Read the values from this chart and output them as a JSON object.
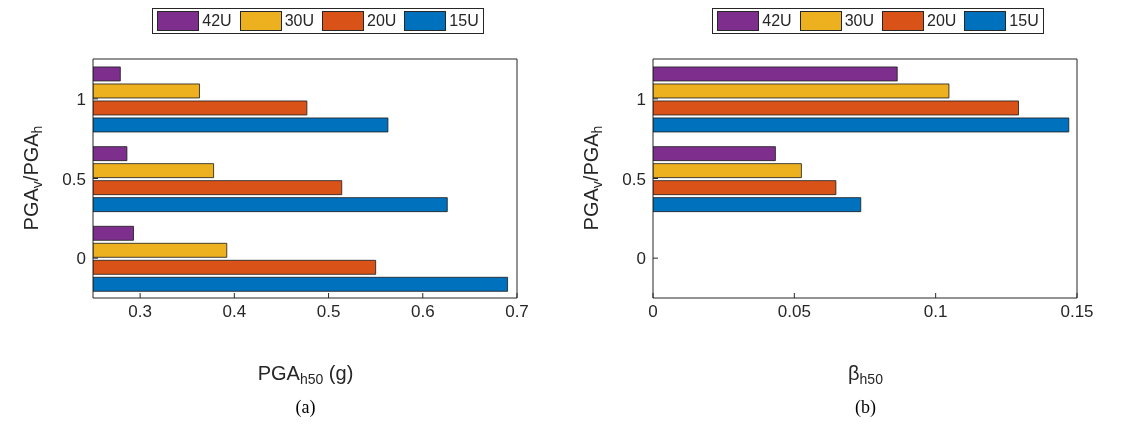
{
  "chart_data": [
    {
      "type": "bar",
      "orientation": "horizontal",
      "categories": [
        "1",
        "0.5",
        "0"
      ],
      "xlabel": "PGA$_{h50}$ (g)",
      "ylabel": "PGA$_{v}$/PGA$_{h}$",
      "xlim": [
        0.25,
        0.7
      ],
      "xticks": [
        0.3,
        0.4,
        0.5,
        0.6,
        0.7
      ],
      "legend": "top",
      "grid": false,
      "annotations": [
        "(a)"
      ],
      "series": [
        {
          "name": "42U",
          "color": "#7e2f8e",
          "values": [
            0.279,
            0.286,
            0.293
          ]
        },
        {
          "name": "30U",
          "color": "#edb120",
          "values": [
            0.363,
            0.378,
            0.392
          ]
        },
        {
          "name": "20U",
          "color": "#d95319",
          "values": [
            0.477,
            0.514,
            0.55
          ]
        },
        {
          "name": "15U",
          "color": "#0072bd",
          "values": [
            0.563,
            0.626,
            0.69
          ]
        }
      ]
    },
    {
      "type": "bar",
      "orientation": "horizontal",
      "categories": [
        "1",
        "0.5",
        "0"
      ],
      "xlabel": "β$_{h50}$",
      "ylabel": "PGA$_{v}$/PGA$_{h}$",
      "xlim": [
        0,
        0.15
      ],
      "xticks": [
        0,
        0.05,
        0.1,
        0.15
      ],
      "legend": "top",
      "grid": false,
      "annotations": [
        "(b)"
      ],
      "series": [
        {
          "name": "42U",
          "color": "#7e2f8e",
          "values": [
            0.0864,
            0.0433,
            0
          ]
        },
        {
          "name": "30U",
          "color": "#edb120",
          "values": [
            0.1047,
            0.0525,
            0
          ]
        },
        {
          "name": "20U",
          "color": "#d95319",
          "values": [
            0.1293,
            0.0647,
            0
          ]
        },
        {
          "name": "15U",
          "color": "#0072bd",
          "values": [
            0.1471,
            0.0735,
            0
          ]
        }
      ]
    }
  ]
}
